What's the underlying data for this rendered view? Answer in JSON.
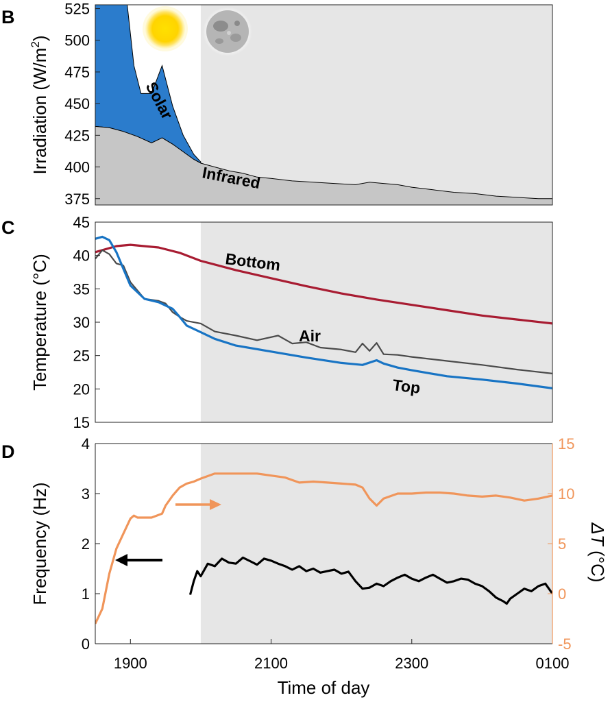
{
  "figure": {
    "x_axis_label": "Time of day",
    "colors": {
      "solar": "#2b7ccc",
      "infrared": "#c6c6c6",
      "night_shade": "#e6e6e6",
      "bottom": "#a81c32",
      "air": "#4a4a4a",
      "top": "#1874c4",
      "frequency": "#000000",
      "delta_t": "#f0955a"
    }
  },
  "chart_data": [
    {
      "panel": "B",
      "type": "area",
      "ylabel_main": "Irradiation (W/m",
      "ylabel_sup": "2",
      "ylabel_close": ")",
      "ylim": [
        370,
        528
      ],
      "yticks": [
        "375",
        "400",
        "425",
        "450",
        "475",
        "500",
        "525"
      ],
      "xlim": [
        18.5,
        25.0
      ],
      "night_start": 20.0,
      "icons": [
        "sun-icon",
        "moon-icon"
      ],
      "annotations": [
        "Solar",
        "Infrared"
      ],
      "series": [
        {
          "name": "Infrared",
          "x": [
            18.5,
            18.7,
            18.9,
            19.1,
            19.3,
            19.45,
            19.6,
            19.75,
            19.9,
            20.0,
            20.2,
            20.4,
            20.6,
            20.8,
            21.0,
            21.3,
            21.6,
            21.9,
            22.2,
            22.4,
            22.6,
            22.8,
            23.0,
            23.3,
            23.6,
            23.9,
            24.2,
            24.5,
            24.8,
            25.0
          ],
          "values": [
            432,
            431,
            428,
            424,
            419,
            423,
            418,
            412,
            406,
            403,
            400,
            397,
            395,
            392,
            391,
            389,
            388,
            387,
            386,
            388,
            387,
            386,
            384,
            382,
            380,
            379,
            377,
            376,
            375,
            375
          ]
        },
        {
          "name": "Solar",
          "x": [
            18.5,
            18.75,
            18.95,
            19.05,
            19.15,
            19.3,
            19.45,
            19.6,
            19.75,
            19.9,
            20.0
          ],
          "values": [
            530,
            530,
            530,
            480,
            458,
            458,
            480,
            448,
            425,
            410,
            404
          ]
        }
      ]
    },
    {
      "panel": "C",
      "type": "line",
      "ylabel": "Temperature (°C)",
      "ylim": [
        15,
        45
      ],
      "yticks": [
        "15",
        "20",
        "25",
        "30",
        "35",
        "40",
        "45"
      ],
      "xlim": [
        18.5,
        25.0
      ],
      "night_start": 20.0,
      "series": [
        {
          "name": "Bottom",
          "x": [
            18.5,
            18.8,
            19.0,
            19.4,
            19.7,
            20.0,
            20.5,
            21.0,
            21.5,
            22.0,
            22.5,
            23.0,
            23.5,
            24.0,
            24.5,
            25.0
          ],
          "values": [
            40.5,
            41.4,
            41.6,
            41.2,
            40.4,
            39.2,
            37.8,
            36.6,
            35.4,
            34.3,
            33.4,
            32.6,
            31.8,
            31.0,
            30.4,
            29.8
          ]
        },
        {
          "name": "Air",
          "x": [
            18.5,
            18.6,
            18.7,
            18.8,
            18.9,
            19.0,
            19.2,
            19.4,
            19.5,
            19.6,
            19.7,
            19.8,
            20.0,
            20.2,
            20.5,
            20.8,
            21.1,
            21.3,
            21.5,
            21.7,
            22.0,
            22.2,
            22.3,
            22.4,
            22.5,
            22.6,
            22.8,
            23.0,
            23.5,
            24.0,
            24.5,
            25.0
          ],
          "values": [
            39.5,
            40.8,
            40.2,
            38.8,
            38.5,
            36.0,
            33.5,
            33.2,
            32.8,
            31.5,
            30.8,
            30.2,
            29.8,
            28.6,
            28.0,
            27.3,
            28.0,
            26.8,
            27.0,
            26.2,
            25.9,
            25.5,
            26.8,
            25.7,
            26.9,
            25.2,
            25.1,
            24.8,
            24.2,
            23.6,
            22.9,
            22.3
          ]
        },
        {
          "name": "Top",
          "x": [
            18.5,
            18.6,
            18.7,
            18.8,
            18.9,
            19.0,
            19.2,
            19.4,
            19.6,
            19.7,
            19.8,
            20.0,
            20.2,
            20.5,
            21.0,
            21.5,
            22.0,
            22.3,
            22.5,
            22.6,
            22.8,
            23.0,
            23.5,
            24.0,
            24.5,
            25.0
          ],
          "values": [
            42.5,
            42.8,
            42.3,
            40.5,
            38.0,
            35.5,
            33.5,
            33.0,
            32.0,
            30.8,
            29.5,
            28.5,
            27.5,
            26.5,
            25.6,
            24.7,
            23.9,
            23.6,
            24.3,
            23.8,
            23.2,
            22.8,
            21.9,
            21.4,
            20.8,
            20.1
          ]
        }
      ]
    },
    {
      "panel": "D",
      "type": "line",
      "ylabel_left": "Frequency (Hz)",
      "ylabel_right_prefix": "ΔT",
      "ylabel_right_suffix": " (°C)",
      "ylim_left": [
        0,
        4
      ],
      "ylim_right": [
        -5,
        15
      ],
      "yticks_left": [
        "0",
        "1",
        "2",
        "3",
        "4"
      ],
      "yticks_right": [
        "-5",
        "0",
        "5",
        "10",
        "15"
      ],
      "xlim": [
        18.5,
        25.0
      ],
      "night_start": 20.0,
      "xticks": [
        {
          "value": 19.0,
          "label": "1900"
        },
        {
          "value": 21.0,
          "label": "2100"
        },
        {
          "value": 23.0,
          "label": "2300"
        },
        {
          "value": 25.0,
          "label": "0100"
        }
      ],
      "series": [
        {
          "name": "Frequency",
          "axis": "left",
          "x": [
            19.85,
            19.9,
            19.95,
            20.0,
            20.1,
            20.2,
            20.3,
            20.4,
            20.5,
            20.6,
            20.7,
            20.8,
            20.9,
            21.0,
            21.1,
            21.2,
            21.3,
            21.4,
            21.5,
            21.6,
            21.7,
            21.8,
            21.9,
            22.0,
            22.1,
            22.2,
            22.3,
            22.4,
            22.5,
            22.6,
            22.7,
            22.8,
            22.9,
            23.0,
            23.1,
            23.2,
            23.3,
            23.4,
            23.5,
            23.6,
            23.7,
            23.8,
            23.9,
            24.0,
            24.1,
            24.2,
            24.3,
            24.35,
            24.4,
            24.5,
            24.6,
            24.7,
            24.8,
            24.9,
            25.0
          ],
          "values": [
            0.98,
            1.25,
            1.45,
            1.35,
            1.6,
            1.55,
            1.7,
            1.62,
            1.6,
            1.72,
            1.65,
            1.58,
            1.7,
            1.66,
            1.6,
            1.55,
            1.48,
            1.55,
            1.45,
            1.5,
            1.42,
            1.45,
            1.48,
            1.4,
            1.44,
            1.25,
            1.1,
            1.12,
            1.2,
            1.15,
            1.25,
            1.32,
            1.38,
            1.3,
            1.25,
            1.32,
            1.38,
            1.3,
            1.22,
            1.25,
            1.3,
            1.28,
            1.2,
            1.15,
            1.05,
            0.92,
            0.85,
            0.8,
            0.9,
            1.0,
            1.1,
            1.05,
            1.15,
            1.2,
            1.0
          ]
        },
        {
          "name": "ΔT",
          "axis": "right",
          "x": [
            18.5,
            18.6,
            18.7,
            18.8,
            18.9,
            19.0,
            19.05,
            19.1,
            19.3,
            19.45,
            19.5,
            19.6,
            19.7,
            19.8,
            19.9,
            20.0,
            20.2,
            20.5,
            20.8,
            21.0,
            21.2,
            21.4,
            21.6,
            21.8,
            22.0,
            22.2,
            22.3,
            22.4,
            22.5,
            22.6,
            22.8,
            23.0,
            23.2,
            23.4,
            23.6,
            23.8,
            24.0,
            24.2,
            24.4,
            24.6,
            24.8,
            25.0
          ],
          "values": [
            -3.0,
            -1.5,
            2.0,
            4.5,
            6.0,
            7.5,
            7.8,
            7.6,
            7.6,
            8.0,
            8.8,
            9.8,
            10.6,
            11.0,
            11.2,
            11.5,
            12.0,
            12.0,
            12.0,
            11.8,
            11.6,
            11.1,
            11.2,
            11.1,
            11.0,
            10.9,
            10.6,
            9.5,
            8.8,
            9.5,
            10.0,
            10.0,
            10.1,
            10.1,
            10.0,
            9.8,
            9.7,
            9.8,
            9.6,
            9.3,
            9.5,
            9.8
          ]
        }
      ]
    }
  ]
}
